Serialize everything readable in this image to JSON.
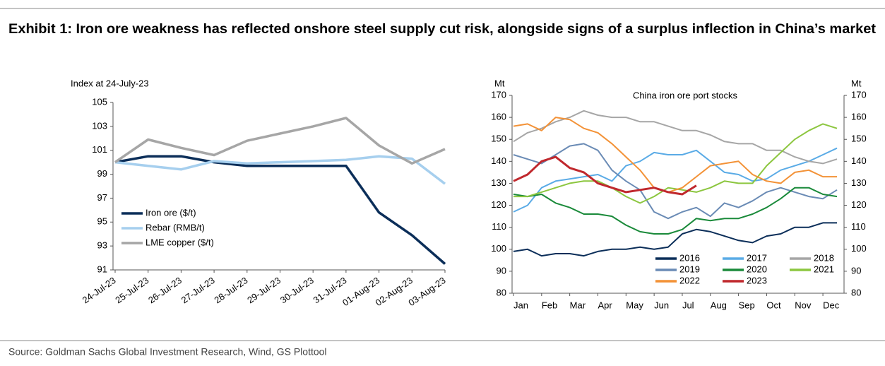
{
  "title": "Exhibit 1: Iron ore weakness has reflected onshore steel supply cut risk, alongside signs of a surplus inflection in China’s market",
  "source": "Source: Goldman Sachs Global Investment Research, Wind, GS Plottool",
  "chart_data": [
    {
      "type": "line",
      "y_label": "Index at 24-July-23",
      "categories": [
        "24-Jul-23",
        "25-Jul-23",
        "26-Jul-23",
        "27-Jul-23",
        "28-Jul-23",
        "29-Jul-23",
        "30-Jul-23",
        "31-Jul-23",
        "01-Aug-23",
        "02-Aug-23",
        "03-Aug-23"
      ],
      "series": [
        {
          "name": "Iron ore ($/t)",
          "color": "#0b2e59",
          "values": [
            100,
            100.5,
            100.5,
            100,
            99.7,
            99.7,
            99.7,
            99.7,
            95.8,
            93.9,
            91.5
          ]
        },
        {
          "name": "Rebar (RMB/t)",
          "color": "#a6cfee",
          "values": [
            100,
            99.7,
            99.4,
            100.1,
            99.9,
            100.0,
            100.1,
            100.2,
            100.5,
            100.3,
            98.2
          ]
        },
        {
          "name": "LME copper ($/t)",
          "color": "#a6a6a6",
          "values": [
            100,
            101.9,
            101.2,
            100.6,
            101.8,
            102.4,
            103.0,
            103.7,
            101.4,
            99.9,
            101.1
          ]
        }
      ],
      "ylim": [
        91,
        105
      ],
      "yticks": [
        91,
        93,
        95,
        97,
        99,
        101,
        103,
        105
      ],
      "grid": false,
      "legend": "lower-left"
    },
    {
      "type": "line",
      "title": "China iron ore port stocks",
      "y_label": "Mt",
      "y2_label": "Mt",
      "categories": [
        "Jan",
        null,
        "Feb",
        null,
        "Mar",
        null,
        "Apr",
        null,
        "May",
        null,
        "Jun",
        null,
        "Jul",
        null,
        "Aug",
        null,
        "Sep",
        null,
        "Oct",
        null,
        "Nov",
        null,
        "Dec",
        null
      ],
      "series": [
        {
          "name": "2016",
          "color": "#0b2e59",
          "values": [
            99,
            100,
            97,
            98,
            98,
            97,
            99,
            100,
            100,
            101,
            100,
            101,
            107,
            109,
            108,
            106,
            104,
            103,
            106,
            107,
            110,
            110,
            112,
            112
          ]
        },
        {
          "name": "2017",
          "color": "#5aabe6",
          "values": [
            117,
            120,
            128,
            131,
            132,
            133,
            134,
            131,
            138,
            140,
            144,
            143,
            143,
            145,
            140,
            135,
            134,
            131,
            132,
            136,
            138,
            140,
            143,
            146
          ]
        },
        {
          "name": "2018",
          "color": "#a6a6a6",
          "values": [
            149,
            153,
            155,
            158,
            160,
            163,
            161,
            160,
            160,
            158,
            158,
            156,
            154,
            154,
            152,
            149,
            148,
            148,
            145,
            145,
            142,
            140,
            139,
            141
          ]
        },
        {
          "name": "2019",
          "color": "#6a8bb5",
          "values": [
            143,
            141,
            139,
            143,
            147,
            148,
            145,
            136,
            131,
            127,
            117,
            114,
            117,
            119,
            115,
            121,
            119,
            122,
            126,
            128,
            126,
            124,
            123,
            127
          ]
        },
        {
          "name": "2020",
          "color": "#1a8a3a",
          "values": [
            125,
            124,
            125,
            121,
            119,
            116,
            116,
            115,
            111,
            108,
            107,
            107,
            109,
            114,
            113,
            114,
            114,
            116,
            119,
            123,
            128,
            128,
            125,
            124
          ]
        },
        {
          "name": "2021",
          "color": "#8cc63f",
          "values": [
            124,
            124,
            126,
            128,
            130,
            131,
            131,
            128,
            124,
            121,
            124,
            128,
            127,
            126,
            128,
            131,
            130,
            130,
            138,
            144,
            150,
            154,
            157,
            155
          ]
        },
        {
          "name": "2022",
          "color": "#f39237",
          "values": [
            156,
            157,
            154,
            160,
            159,
            155,
            153,
            148,
            142,
            136,
            128,
            126,
            128,
            133,
            138,
            139,
            140,
            134,
            131,
            130,
            135,
            136,
            133,
            133
          ]
        },
        {
          "name": "2023",
          "color": "#c0282d",
          "values": [
            131,
            134,
            140,
            142,
            137,
            135,
            130,
            128,
            126,
            127,
            128,
            126,
            125,
            129,
            null,
            null,
            null,
            null,
            null,
            null,
            null,
            null,
            null,
            null
          ]
        }
      ],
      "ylim": [
        80,
        170
      ],
      "yticks": [
        80,
        90,
        100,
        110,
        120,
        130,
        140,
        150,
        160,
        170
      ],
      "y2lim": [
        80,
        170
      ],
      "y2ticks": [
        80,
        90,
        100,
        110,
        120,
        130,
        140,
        150,
        160,
        170
      ],
      "grid": false,
      "legend": "lower-right"
    }
  ]
}
